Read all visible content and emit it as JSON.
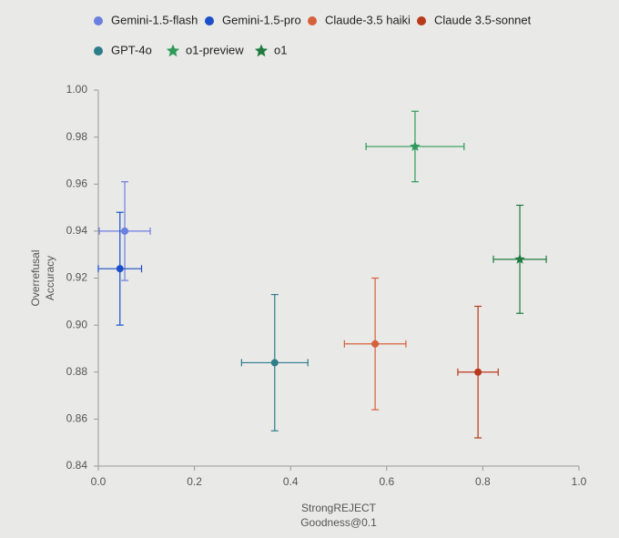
{
  "chart_data": {
    "type": "scatter",
    "xlabel": [
      "StrongREJECT",
      "Goodness@0.1"
    ],
    "ylabel": [
      "Overrefusal",
      "Accuracy"
    ],
    "xlim": [
      0,
      1
    ],
    "xticks": [
      {
        "value": 0,
        "label": "0.0"
      },
      0.2,
      0.4,
      0.6,
      0.8,
      {
        "value": 1,
        "label": "1.0"
      }
    ],
    "ylim": [
      0.84,
      1
    ],
    "yticks": [
      0.84,
      0.86,
      0.88,
      {
        "value": 0.9,
        "label": "0.90"
      },
      0.92,
      0.94,
      0.96,
      0.98,
      {
        "value": 1,
        "label": "1.00"
      }
    ],
    "series": [
      {
        "name": "Gemini-1.5-flash",
        "color": "#6a7fe0",
        "marker": "circle",
        "x": [
          0.055
        ],
        "values": [
          0.94
        ],
        "xerr": [
          0.053
        ],
        "yerr": [
          0.021
        ]
      },
      {
        "name": "Gemini-1.5-pro",
        "color": "#1a4fc9",
        "marker": "circle",
        "x": [
          0.045
        ],
        "values": [
          0.924
        ],
        "xerr": [
          0.045
        ],
        "yerr": [
          0.024
        ]
      },
      {
        "name": "Claude-3.5 haiki",
        "color": "#d4613a",
        "marker": "circle",
        "x": [
          0.576
        ],
        "values": [
          0.892
        ],
        "xerr": [
          0.064
        ],
        "yerr": [
          0.028
        ]
      },
      {
        "name": "Claude 3.5-sonnet",
        "color": "#b8391c",
        "marker": "circle",
        "x": [
          0.79
        ],
        "values": [
          0.88
        ],
        "xerr": [
          0.042
        ],
        "yerr": [
          0.028
        ]
      },
      {
        "name": "GPT-4o",
        "color": "#2d7d8a",
        "marker": "circle",
        "x": [
          0.367
        ],
        "values": [
          0.884
        ],
        "xerr": [
          0.069
        ],
        "yerr": [
          0.029
        ]
      },
      {
        "name": "o1-preview",
        "color": "#2e9a5a",
        "marker": "star",
        "x": [
          0.659
        ],
        "values": [
          0.976
        ],
        "xerr": [
          0.102
        ],
        "yerr": [
          0.015
        ]
      },
      {
        "name": "o1",
        "color": "#1e7a40",
        "marker": "star",
        "x": [
          0.877
        ],
        "values": [
          0.928
        ],
        "xerr": [
          0.055
        ],
        "yerr": [
          0.023
        ]
      }
    ]
  }
}
